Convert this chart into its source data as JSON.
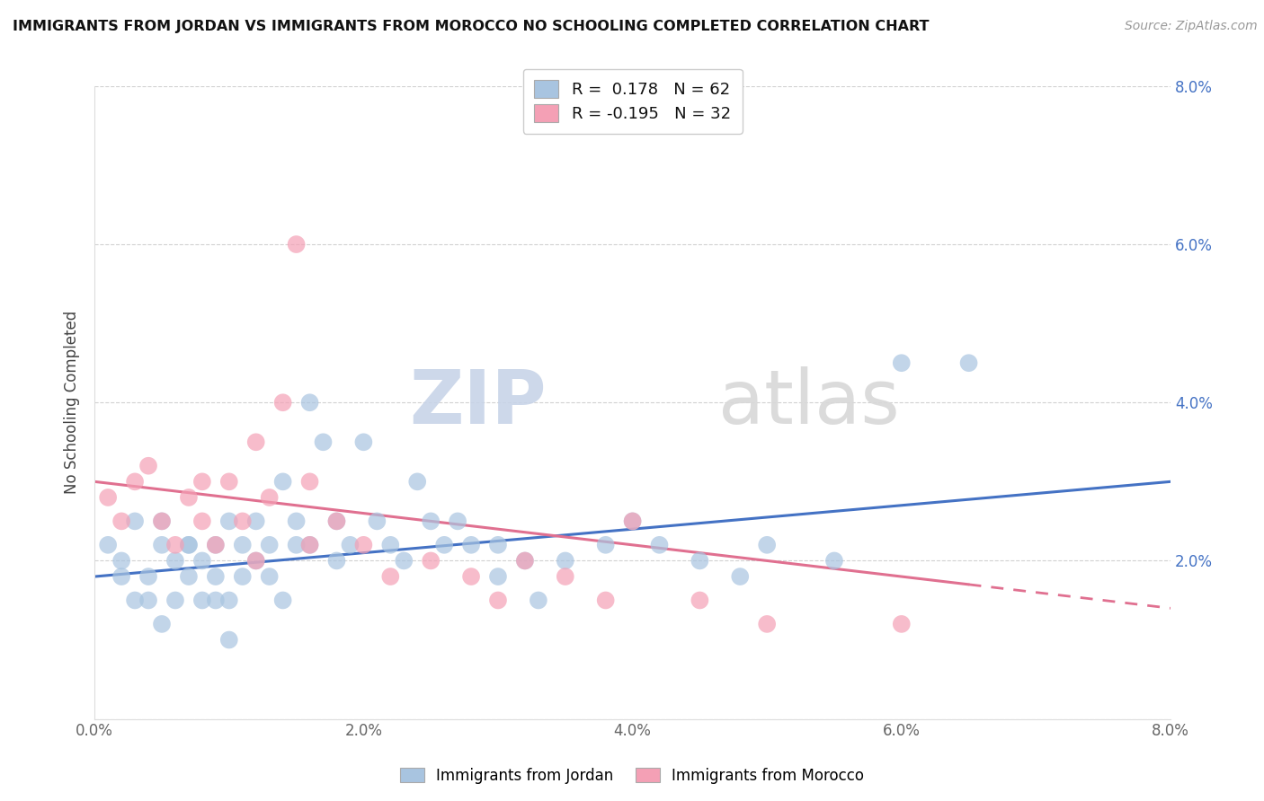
{
  "title": "IMMIGRANTS FROM JORDAN VS IMMIGRANTS FROM MOROCCO NO SCHOOLING COMPLETED CORRELATION CHART",
  "source": "Source: ZipAtlas.com",
  "ylabel": "No Schooling Completed",
  "xlim": [
    0.0,
    0.08
  ],
  "ylim": [
    0.0,
    0.08
  ],
  "jordan_R": 0.178,
  "jordan_N": 62,
  "morocco_R": -0.195,
  "morocco_N": 32,
  "jordan_color": "#a8c4e0",
  "morocco_color": "#f4a0b5",
  "jordan_line_color": "#4472c4",
  "morocco_line_color": "#e07090",
  "jordan_line_start_y": 0.018,
  "jordan_line_end_y": 0.03,
  "morocco_line_start_y": 0.03,
  "morocco_line_end_y": 0.014,
  "jordan_scatter_x": [
    0.001,
    0.002,
    0.002,
    0.003,
    0.003,
    0.004,
    0.004,
    0.005,
    0.005,
    0.006,
    0.006,
    0.007,
    0.007,
    0.008,
    0.008,
    0.009,
    0.009,
    0.01,
    0.01,
    0.011,
    0.011,
    0.012,
    0.012,
    0.013,
    0.013,
    0.014,
    0.014,
    0.015,
    0.015,
    0.016,
    0.016,
    0.017,
    0.018,
    0.018,
    0.019,
    0.02,
    0.021,
    0.022,
    0.023,
    0.024,
    0.025,
    0.026,
    0.027,
    0.028,
    0.03,
    0.03,
    0.032,
    0.033,
    0.035,
    0.038,
    0.04,
    0.042,
    0.045,
    0.048,
    0.05,
    0.055,
    0.06,
    0.005,
    0.007,
    0.009,
    0.01,
    0.065
  ],
  "jordan_scatter_y": [
    0.022,
    0.02,
    0.018,
    0.025,
    0.015,
    0.018,
    0.015,
    0.022,
    0.012,
    0.02,
    0.015,
    0.022,
    0.018,
    0.02,
    0.015,
    0.022,
    0.018,
    0.025,
    0.015,
    0.022,
    0.018,
    0.025,
    0.02,
    0.018,
    0.022,
    0.015,
    0.03,
    0.025,
    0.022,
    0.04,
    0.022,
    0.035,
    0.025,
    0.02,
    0.022,
    0.035,
    0.025,
    0.022,
    0.02,
    0.03,
    0.025,
    0.022,
    0.025,
    0.022,
    0.022,
    0.018,
    0.02,
    0.015,
    0.02,
    0.022,
    0.025,
    0.022,
    0.02,
    0.018,
    0.022,
    0.02,
    0.045,
    0.025,
    0.022,
    0.015,
    0.01,
    0.045
  ],
  "morocco_scatter_x": [
    0.001,
    0.002,
    0.003,
    0.004,
    0.005,
    0.006,
    0.007,
    0.008,
    0.009,
    0.01,
    0.011,
    0.012,
    0.013,
    0.014,
    0.015,
    0.016,
    0.018,
    0.02,
    0.022,
    0.025,
    0.028,
    0.03,
    0.032,
    0.035,
    0.038,
    0.04,
    0.045,
    0.05,
    0.06,
    0.008,
    0.012,
    0.016
  ],
  "morocco_scatter_y": [
    0.028,
    0.025,
    0.03,
    0.032,
    0.025,
    0.022,
    0.028,
    0.025,
    0.022,
    0.03,
    0.025,
    0.035,
    0.028,
    0.04,
    0.06,
    0.022,
    0.025,
    0.022,
    0.018,
    0.02,
    0.018,
    0.015,
    0.02,
    0.018,
    0.015,
    0.025,
    0.015,
    0.012,
    0.012,
    0.03,
    0.02,
    0.03
  ]
}
